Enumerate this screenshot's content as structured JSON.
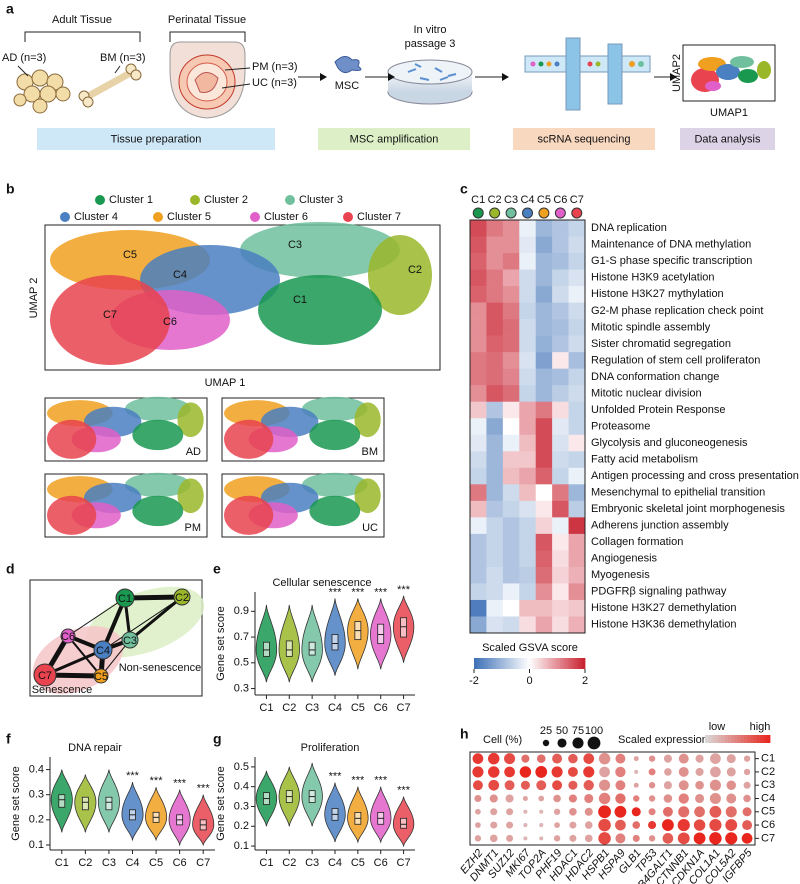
{
  "figure": {
    "panel_labels": [
      "a",
      "b",
      "c",
      "d",
      "e",
      "f",
      "g",
      "h"
    ],
    "a": {
      "adult_tissue": "Adult Tissue",
      "ad": "AD (n=3)",
      "bm": "BM (n=3)",
      "perinatal_tissue": "Perinatal Tissue",
      "pm": "PM (n=3)",
      "uc": "UC (n=3)",
      "msc": "MSC",
      "in_vitro": [
        "In vitro",
        "passage 3"
      ],
      "umap_x": "UMAP1",
      "umap_y": "UMAP2",
      "steps": [
        {
          "label": "Tissue preparation",
          "color": "#cfe8f7"
        },
        {
          "label": "MSC amplification",
          "color": "#dcefc6"
        },
        {
          "label": "scRNA sequencing",
          "color": "#f9d8c0"
        },
        {
          "label": "Data analysis",
          "color": "#ddd3e7"
        }
      ]
    },
    "b": {
      "legend": [
        {
          "name": "Cluster 1",
          "color": "#1a9850"
        },
        {
          "name": "Cluster 2",
          "color": "#9ab72a"
        },
        {
          "name": "Cluster 3",
          "color": "#70c09e"
        },
        {
          "name": "Cluster 4",
          "color": "#4a7fc1"
        },
        {
          "name": "Cluster 5",
          "color": "#f0a020"
        },
        {
          "name": "Cluster 6",
          "color": "#e05fc8"
        },
        {
          "name": "Cluster 7",
          "color": "#e8434e"
        }
      ],
      "xlabel": "UMAP 1",
      "ylabel": "UMAP 2",
      "cluster_labels": [
        "C1",
        "C2",
        "C3",
        "C4",
        "C5",
        "C6",
        "C7"
      ],
      "tissues": [
        "AD",
        "BM",
        "PM",
        "UC"
      ]
    },
    "d": {
      "nodes": [
        "C1",
        "C2",
        "C3",
        "C4",
        "C5",
        "C6",
        "C7"
      ],
      "groups": [
        {
          "label": "Non-senescence",
          "color": "#1a9850"
        },
        {
          "label": "Senescence",
          "color": "#e8434e"
        }
      ]
    }
  },
  "chart_data": [
    {
      "type": "heatmap",
      "columns": [
        "C1",
        "C2",
        "C3",
        "C4",
        "C5",
        "C6",
        "C7"
      ],
      "column_colors": [
        "#1a9850",
        "#9ab72a",
        "#70c09e",
        "#4a7fc1",
        "#f0a020",
        "#e05fc8",
        "#e8434e"
      ],
      "rows": [
        "DNA replication",
        "Maintenance of DNA methylation",
        "G1-S phase specific transcription",
        "Histone H3K9 acetylation",
        "Histone H3K27 mythylation",
        "G2-M phase replication check point",
        "Mitotic spindle assembly",
        "Sister chromatid segregation",
        "Regulation of stem cell proliferaton",
        "DNA conformation change",
        "Mitotic nuclear division",
        "Unfolded Protein Response",
        "Proteasome",
        "Glycolysis and gluconeogenesis",
        "Fatty acid metabolism",
        "Antigen processing and cross presentation",
        "Mesenchymal to epithelial transition",
        "Embryonic skeletal joint morphogenesis",
        "Adherens junction assembly",
        "Collagen formation",
        "Angiogenesis",
        "Myogenesis",
        "PDGFRβ signaling pathway",
        "Histone H3K27 demethylation",
        "Histone H3K36 demethylation"
      ],
      "values": [
        [
          1.6,
          1.2,
          1.0,
          -0.2,
          -1.0,
          -0.8,
          -0.6
        ],
        [
          1.5,
          1.0,
          1.0,
          -0.3,
          -1.2,
          -0.8,
          -0.5
        ],
        [
          1.4,
          1.0,
          1.2,
          -0.2,
          -1.0,
          -0.9,
          -0.6
        ],
        [
          1.5,
          1.2,
          0.8,
          -0.5,
          -1.0,
          -0.6,
          -0.4
        ],
        [
          1.4,
          1.2,
          1.0,
          -0.5,
          -1.2,
          -0.5,
          -0.2
        ],
        [
          1.0,
          1.5,
          1.2,
          -0.6,
          -1.0,
          -0.8,
          -0.5
        ],
        [
          1.0,
          1.5,
          1.3,
          -0.5,
          -1.0,
          -0.9,
          -0.6
        ],
        [
          1.0,
          1.4,
          1.3,
          -0.5,
          -1.1,
          -0.8,
          -0.5
        ],
        [
          1.2,
          1.3,
          1.0,
          -0.4,
          -1.3,
          0.2,
          -0.9
        ],
        [
          1.2,
          1.3,
          1.1,
          -0.5,
          -1.0,
          -0.9,
          -0.6
        ],
        [
          1.0,
          1.5,
          1.3,
          -0.6,
          -1.0,
          -0.7,
          -0.5
        ],
        [
          0.5,
          -0.8,
          0.2,
          0.8,
          1.2,
          0.3,
          -0.6
        ],
        [
          -0.2,
          -1.2,
          0.0,
          0.8,
          1.6,
          -0.3,
          -0.6
        ],
        [
          -0.3,
          -1.0,
          -0.2,
          0.6,
          1.6,
          -0.4,
          0.2
        ],
        [
          -0.5,
          -1.0,
          0.5,
          0.5,
          1.6,
          -0.5,
          -0.6
        ],
        [
          -0.6,
          -1.0,
          0.6,
          0.8,
          1.4,
          -0.6,
          -0.2
        ],
        [
          1.2,
          -1.0,
          -0.5,
          0.6,
          0.0,
          1.2,
          -1.0
        ],
        [
          0.6,
          -0.8,
          -0.6,
          -0.4,
          0.2,
          1.5,
          -0.7
        ],
        [
          -0.2,
          -0.6,
          -0.8,
          -0.6,
          0.4,
          -0.2,
          1.8
        ],
        [
          -0.8,
          -0.6,
          -0.8,
          -0.6,
          1.5,
          0.2,
          0.8
        ],
        [
          -0.8,
          -0.6,
          -0.8,
          -0.6,
          1.4,
          0.3,
          0.8
        ],
        [
          -0.8,
          -0.5,
          -0.8,
          -0.7,
          1.3,
          0.4,
          0.7
        ],
        [
          -0.6,
          -0.5,
          -0.2,
          -0.6,
          1.0,
          0.2,
          1.0
        ],
        [
          -1.8,
          -0.2,
          0.0,
          0.6,
          0.6,
          0.4,
          0.5
        ],
        [
          -1.2,
          -0.4,
          -0.5,
          0.3,
          0.8,
          0.3,
          0.7
        ]
      ],
      "zlim": [
        -2,
        2
      ],
      "colorbar_ticks": [
        -2,
        0,
        2
      ],
      "colorbar_label": "Scaled GSVA score",
      "colors": [
        "#3b6fb6",
        "#ffffff",
        "#c81e2d"
      ]
    },
    {
      "type": "violin",
      "title": "Cellular senescence",
      "ylabel": "Gene set score",
      "categories": [
        "C1",
        "C2",
        "C3",
        "C4",
        "C5",
        "C6",
        "C7"
      ],
      "colors": [
        "#1a9850",
        "#9ab72a",
        "#70c09e",
        "#4a7fc1",
        "#f0a020",
        "#e05fc8",
        "#e8434e"
      ],
      "min": [
        0.35,
        0.35,
        0.35,
        0.4,
        0.45,
        0.45,
        0.5
      ],
      "q1": [
        0.55,
        0.55,
        0.56,
        0.6,
        0.68,
        0.65,
        0.7
      ],
      "median": [
        0.6,
        0.6,
        0.6,
        0.65,
        0.75,
        0.72,
        0.78
      ],
      "q3": [
        0.66,
        0.67,
        0.66,
        0.72,
        0.82,
        0.8,
        0.85
      ],
      "max": [
        0.95,
        0.95,
        0.95,
        1.0,
        1.0,
        1.0,
        1.02
      ],
      "ylim": [
        0.25,
        1.05
      ],
      "yticks": [
        0.3,
        0.5,
        0.7,
        0.9
      ],
      "significance": [
        null,
        null,
        null,
        "***",
        "***",
        "***",
        "***"
      ]
    },
    {
      "type": "violin",
      "title": "DNA repair",
      "ylabel": "Gene set score",
      "categories": [
        "C1",
        "C2",
        "C3",
        "C4",
        "C5",
        "C6",
        "C7"
      ],
      "colors": [
        "#1a9850",
        "#9ab72a",
        "#70c09e",
        "#4a7fc1",
        "#f0a020",
        "#e05fc8",
        "#e8434e"
      ],
      "min": [
        0.15,
        0.15,
        0.15,
        0.12,
        0.12,
        0.1,
        0.1
      ],
      "q1": [
        0.25,
        0.24,
        0.24,
        0.2,
        0.19,
        0.18,
        0.16
      ],
      "median": [
        0.28,
        0.27,
        0.27,
        0.22,
        0.21,
        0.2,
        0.18
      ],
      "q3": [
        0.3,
        0.29,
        0.29,
        0.24,
        0.23,
        0.22,
        0.2
      ],
      "max": [
        0.4,
        0.38,
        0.4,
        0.35,
        0.33,
        0.32,
        0.3
      ],
      "ylim": [
        0.08,
        0.45
      ],
      "yticks": [
        0.1,
        0.2,
        0.3,
        0.4
      ],
      "significance": [
        null,
        null,
        null,
        "***",
        "***",
        "***",
        "***"
      ]
    },
    {
      "type": "violin",
      "title": "Proliferation",
      "ylabel": "Gene set score",
      "categories": [
        "C1",
        "C2",
        "C3",
        "C4",
        "C5",
        "C6",
        "C7"
      ],
      "colors": [
        "#1a9850",
        "#9ab72a",
        "#70c09e",
        "#4a7fc1",
        "#f0a020",
        "#e05fc8",
        "#e8434e"
      ],
      "min": [
        0.2,
        0.2,
        0.2,
        0.12,
        0.12,
        0.12,
        0.1
      ],
      "q1": [
        0.31,
        0.32,
        0.32,
        0.23,
        0.21,
        0.21,
        0.19
      ],
      "median": [
        0.34,
        0.35,
        0.35,
        0.26,
        0.24,
        0.24,
        0.21
      ],
      "q3": [
        0.37,
        0.38,
        0.38,
        0.29,
        0.27,
        0.27,
        0.24
      ],
      "max": [
        0.48,
        0.5,
        0.52,
        0.42,
        0.4,
        0.4,
        0.35
      ],
      "ylim": [
        0.08,
        0.55
      ],
      "yticks": [
        0.1,
        0.2,
        0.3,
        0.4,
        0.5
      ],
      "significance": [
        null,
        null,
        null,
        "***",
        "***",
        "***",
        "***"
      ]
    },
    {
      "type": "dotplot",
      "genes": [
        "EZH2",
        "DNMT1",
        "SUZ12",
        "MKI67",
        "TOP2A",
        "PHF19",
        "HDAC1",
        "HDAC2",
        "HSPB1",
        "HSPA9",
        "GLB1",
        "TP53",
        "B4GALT1",
        "CTNNB1",
        "CDKN1A",
        "COL1A1",
        "COL5A2",
        "IGFBP5"
      ],
      "gene_colors": [
        "#1a9850",
        "#1a9850",
        "#1a9850",
        "#1a9850",
        "#1a9850",
        "#1a9850",
        "#1a9850",
        "#1a9850",
        "#f0a020",
        "#f0a020",
        "#f0a020",
        "#e05fc8",
        "#e05fc8",
        "#e8434e",
        "#e8434e",
        "#e8434e",
        "#e8434e",
        "#e8434e"
      ],
      "clusters": [
        "C1",
        "C2",
        "C3",
        "C4",
        "C5",
        "C6",
        "C7"
      ],
      "values": [
        [
          0.9,
          0.9,
          0.8,
          0.4,
          0.3,
          0.3,
          0.3
        ],
        [
          0.9,
          0.9,
          0.8,
          0.4,
          0.3,
          0.3,
          0.3
        ],
        [
          0.8,
          0.9,
          0.7,
          0.3,
          0.3,
          0.3,
          0.3
        ],
        [
          0.6,
          1.0,
          0.7,
          0.3,
          0.2,
          0.2,
          0.2
        ],
        [
          0.6,
          1.0,
          0.7,
          0.3,
          0.2,
          0.2,
          0.2
        ],
        [
          0.7,
          0.9,
          0.8,
          0.4,
          0.3,
          0.3,
          0.3
        ],
        [
          0.7,
          0.8,
          0.7,
          0.5,
          0.4,
          0.3,
          0.3
        ],
        [
          0.8,
          0.9,
          0.7,
          0.5,
          0.4,
          0.3,
          0.3
        ],
        [
          0.4,
          0.3,
          0.4,
          0.5,
          1.0,
          0.8,
          0.8
        ],
        [
          0.5,
          0.5,
          0.5,
          0.6,
          1.0,
          0.7,
          0.5
        ],
        [
          0.3,
          0.2,
          0.3,
          0.5,
          1.0,
          0.6,
          0.5
        ],
        [
          0.4,
          0.5,
          0.4,
          0.4,
          0.5,
          0.9,
          0.4
        ],
        [
          0.3,
          0.3,
          0.3,
          0.4,
          0.6,
          1.0,
          0.7
        ],
        [
          0.4,
          0.4,
          0.4,
          0.5,
          0.6,
          0.9,
          0.8
        ],
        [
          0.3,
          0.3,
          0.4,
          0.4,
          0.6,
          0.8,
          1.0
        ],
        [
          0.3,
          0.3,
          0.4,
          0.4,
          0.7,
          0.8,
          1.0
        ],
        [
          0.3,
          0.3,
          0.4,
          0.4,
          0.6,
          0.8,
          1.0
        ],
        [
          0.3,
          0.3,
          0.3,
          0.4,
          0.6,
          0.7,
          1.0
        ]
      ],
      "size": [
        [
          70,
          75,
          60,
          30,
          20,
          20,
          25
        ],
        [
          80,
          80,
          70,
          40,
          30,
          30,
          35
        ],
        [
          75,
          70,
          60,
          40,
          30,
          30,
          30
        ],
        [
          40,
          80,
          50,
          15,
          10,
          10,
          10
        ],
        [
          45,
          85,
          60,
          20,
          10,
          10,
          10
        ],
        [
          60,
          75,
          60,
          35,
          25,
          20,
          25
        ],
        [
          55,
          60,
          50,
          40,
          35,
          30,
          30
        ],
        [
          70,
          75,
          65,
          50,
          40,
          35,
          35
        ],
        [
          80,
          70,
          75,
          80,
          100,
          95,
          95
        ],
        [
          60,
          65,
          60,
          65,
          85,
          70,
          60
        ],
        [
          15,
          10,
          15,
          25,
          50,
          35,
          30
        ],
        [
          25,
          30,
          25,
          25,
          30,
          40,
          25
        ],
        [
          40,
          35,
          40,
          45,
          60,
          85,
          70
        ],
        [
          60,
          60,
          60,
          65,
          75,
          90,
          85
        ],
        [
          40,
          40,
          45,
          50,
          70,
          80,
          85
        ],
        [
          70,
          70,
          75,
          75,
          85,
          90,
          95
        ],
        [
          50,
          50,
          55,
          60,
          75,
          85,
          90
        ],
        [
          25,
          25,
          30,
          35,
          50,
          60,
          70
        ]
      ],
      "size_legend_title": "Cell (%)",
      "size_legend": [
        25,
        50,
        75,
        100
      ],
      "color_legend_title": "Scaled expression",
      "color_legend_labels": [
        "low",
        "high"
      ],
      "zlim": [
        0,
        1
      ],
      "colors": [
        "#d9d9d9",
        "#e8261e"
      ]
    }
  ]
}
